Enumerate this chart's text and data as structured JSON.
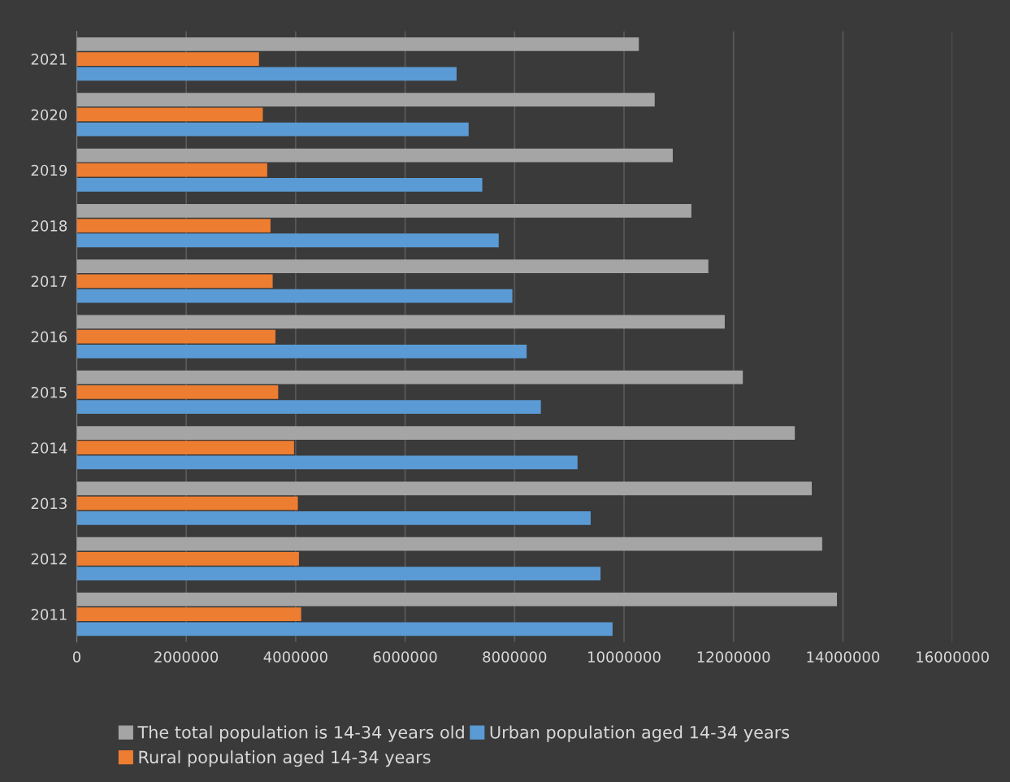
{
  "chart_data": {
    "type": "bar",
    "orientation": "horizontal",
    "categories": [
      "2021",
      "2020",
      "2019",
      "2018",
      "2017",
      "2016",
      "2015",
      "2014",
      "2013",
      "2012",
      "2011"
    ],
    "series": [
      {
        "name": "The total population is 14-34 years old",
        "color": "#a5a5a5",
        "values": [
          10270000,
          10560000,
          10890000,
          11230000,
          11540000,
          11840000,
          12170000,
          13120000,
          13430000,
          13620000,
          13890000
        ]
      },
      {
        "name": "Rural population aged 14-34 years",
        "color": "#ed7d31",
        "values": [
          3330000,
          3400000,
          3480000,
          3540000,
          3580000,
          3630000,
          3680000,
          3970000,
          4040000,
          4060000,
          4100000
        ]
      },
      {
        "name": "Urban population aged 14-34 years",
        "color": "#5b9bd5",
        "values": [
          6940000,
          7160000,
          7410000,
          7710000,
          7960000,
          8220000,
          8480000,
          9150000,
          9390000,
          9570000,
          9790000
        ]
      }
    ],
    "xlim": [
      0,
      16000000
    ],
    "xticks": [
      0,
      2000000,
      4000000,
      6000000,
      8000000,
      10000000,
      12000000,
      14000000,
      16000000
    ],
    "grid": "x",
    "legend": "bottom"
  }
}
